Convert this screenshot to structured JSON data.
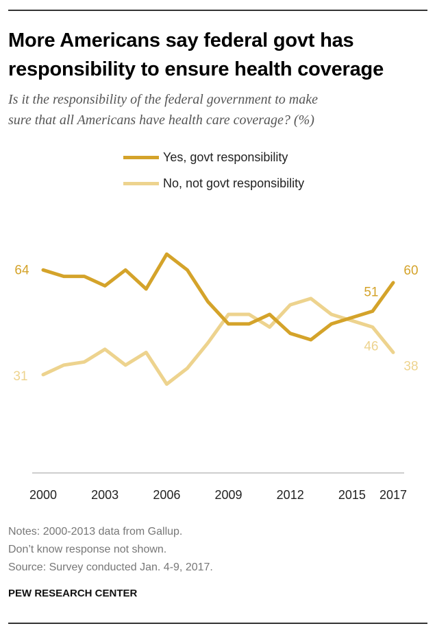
{
  "header": {
    "title_line1": "More Americans say federal govt has",
    "title_line2": "responsibility to ensure health coverage",
    "subtitle_line1": "Is it the responsibility of the federal government to make",
    "subtitle_line2": "sure that all Americans have health care coverage? (%)"
  },
  "colors": {
    "yes": "#D4A32A",
    "no": "#EDD38E",
    "axis": "#bdbdbd"
  },
  "chart_data": {
    "type": "line",
    "x": [
      2000,
      2001,
      2002,
      2003,
      2004,
      2005,
      2006,
      2007,
      2008,
      2009,
      2010,
      2011,
      2012,
      2013,
      2014,
      2015,
      2016,
      2017
    ],
    "series": [
      {
        "name": "Yes, govt responsibility",
        "values": [
          64,
          62,
          62,
          59,
          64,
          58,
          69,
          64,
          54,
          47,
          47,
          50,
          44,
          42,
          47,
          49,
          51,
          60
        ]
      },
      {
        "name": "No, not govt responsibility",
        "values": [
          31,
          34,
          35,
          39,
          34,
          38,
          28,
          33,
          41,
          50,
          50,
          46,
          53,
          55,
          50,
          48,
          46,
          38
        ]
      }
    ],
    "xticks": [
      "2000",
      "2003",
      "2006",
      "2009",
      "2012",
      "2015",
      "2017"
    ],
    "xtick_values": [
      2000,
      2003,
      2006,
      2009,
      2012,
      2015,
      2017
    ],
    "data_labels": {
      "yes_start": "64",
      "yes_2016": "51",
      "yes_end": "60",
      "no_start": "31",
      "no_2016": "46",
      "no_end": "38"
    },
    "ylim": [
      0,
      100
    ],
    "grid": false,
    "legend": "top"
  },
  "footer": {
    "note1": "Notes: 2000-2013 data from Gallup.",
    "note2": "Don’t know response not shown.",
    "note3": "Source: Survey conducted Jan. 4-9, 2017.",
    "org": "PEW RESEARCH CENTER"
  }
}
